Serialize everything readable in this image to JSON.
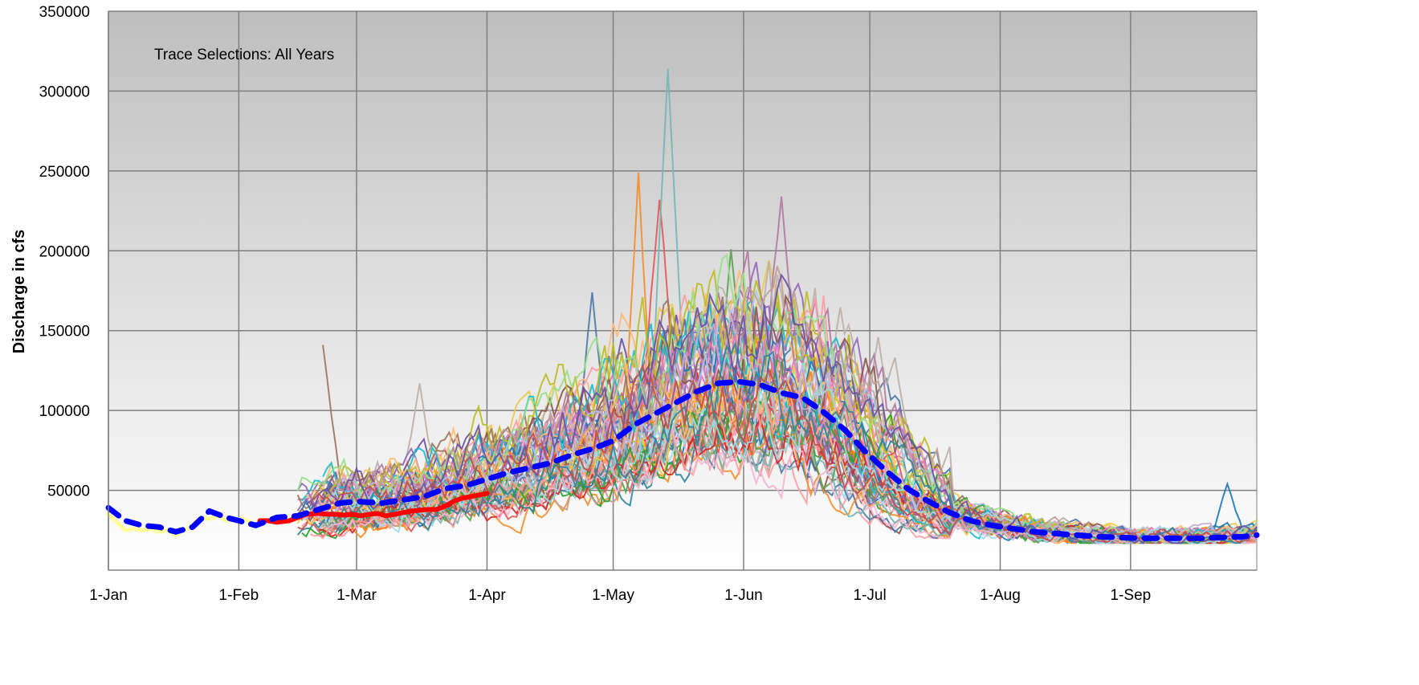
{
  "chart_data": {
    "type": "line",
    "title": "",
    "annotation": "Trace Selections:  All Years",
    "ylabel": "Discharge in cfs",
    "xlabel": "",
    "ylim": [
      0,
      350000
    ],
    "xlim": [
      0,
      273
    ],
    "grid": true,
    "legend": "none",
    "y_ticks": [
      {
        "value": 50000,
        "label": "50000"
      },
      {
        "value": 100000,
        "label": "100000"
      },
      {
        "value": 150000,
        "label": "150000"
      },
      {
        "value": 200000,
        "label": "200000"
      },
      {
        "value": 250000,
        "label": "250000"
      },
      {
        "value": 300000,
        "label": "300000"
      },
      {
        "value": 350000,
        "label": "350000"
      }
    ],
    "x_ticks": [
      {
        "day": 0,
        "label": "1-Jan"
      },
      {
        "day": 31,
        "label": "1-Feb"
      },
      {
        "day": 59,
        "label": "1-Mar"
      },
      {
        "day": 90,
        "label": "1-Apr"
      },
      {
        "day": 120,
        "label": "1-May"
      },
      {
        "day": 151,
        "label": "1-Jun"
      },
      {
        "day": 181,
        "label": "1-Jul"
      },
      {
        "day": 212,
        "label": "1-Aug"
      },
      {
        "day": 243,
        "label": "1-Sep"
      }
    ],
    "colors": {
      "plot_top": "#bebebe",
      "plot_bottom": "#ffffff",
      "grid": "#808080",
      "median": "#0000ff",
      "observed": "#ff0000",
      "prior": "#ffff99"
    },
    "highlight_series": [
      {
        "key": "median",
        "color": "#0000ff",
        "dash": true,
        "width": 7,
        "x": [
          0,
          4,
          8,
          12,
          16,
          20,
          24,
          28,
          31,
          35,
          40,
          45,
          50,
          55,
          59,
          65,
          70,
          75,
          80,
          85,
          90,
          95,
          100,
          105,
          110,
          115,
          120,
          125,
          130,
          135,
          140,
          145,
          150,
          155,
          160,
          165,
          170,
          175,
          180,
          185,
          190,
          195,
          200,
          205,
          210,
          215,
          220,
          225,
          230,
          235,
          240,
          245,
          250,
          255,
          260,
          265,
          270,
          273
        ],
        "y": [
          39000,
          31000,
          28000,
          27000,
          24000,
          27000,
          37000,
          33000,
          31000,
          28000,
          33000,
          34000,
          38000,
          42000,
          43000,
          42000,
          44000,
          46000,
          51000,
          53000,
          57000,
          61000,
          64000,
          67000,
          72000,
          76000,
          81000,
          91000,
          98000,
          105000,
          112000,
          117000,
          118000,
          116000,
          111000,
          108000,
          99000,
          88000,
          74000,
          62000,
          51000,
          43000,
          36000,
          31000,
          28000,
          26000,
          24000,
          23000,
          22000,
          21000,
          20500,
          20000,
          20000,
          20000,
          20000,
          20500,
          21000,
          22000
        ]
      },
      {
        "key": "observed",
        "color": "#ff0000",
        "dash": false,
        "width": 6,
        "x": [
          36,
          38,
          40,
          43,
          45,
          47,
          50,
          52,
          54,
          56,
          58,
          60,
          62,
          64,
          66,
          68,
          70,
          72,
          74,
          76,
          78,
          80,
          82,
          84,
          86,
          88,
          90
        ],
        "y": [
          31000,
          31000,
          30000,
          31000,
          33000,
          35000,
          35500,
          35000,
          35000,
          34500,
          35000,
          34000,
          35000,
          35500,
          34000,
          35000,
          36000,
          37000,
          37500,
          38000,
          38000,
          40000,
          43000,
          45000,
          46000,
          47000,
          48000
        ]
      },
      {
        "key": "prior",
        "color": "#ffff99",
        "dash": false,
        "width": 5,
        "x": [
          0,
          2,
          4,
          6,
          8,
          10,
          12,
          14,
          16,
          18,
          20,
          22,
          24,
          26,
          28,
          30,
          32,
          34
        ],
        "y": [
          35000,
          30000,
          25000,
          26000,
          25000,
          26000,
          24000,
          25000,
          22000,
          25000,
          28000,
          33000,
          32000,
          34000,
          31000,
          32000,
          32000,
          30000
        ]
      }
    ],
    "traces": {
      "count": 60,
      "peak_examples": [
        {
          "x": 115,
          "y": 174000
        },
        {
          "x": 126,
          "y": 249000
        },
        {
          "x": 131,
          "y": 232000
        },
        {
          "x": 133,
          "y": 314000
        },
        {
          "x": 148,
          "y": 201000
        },
        {
          "x": 157,
          "y": 194000
        },
        {
          "x": 160,
          "y": 234000
        },
        {
          "x": 170,
          "y": 172000
        },
        {
          "x": 51,
          "y": 141000
        },
        {
          "x": 74,
          "y": 117000
        },
        {
          "x": 266,
          "y": 54000
        }
      ]
    }
  }
}
